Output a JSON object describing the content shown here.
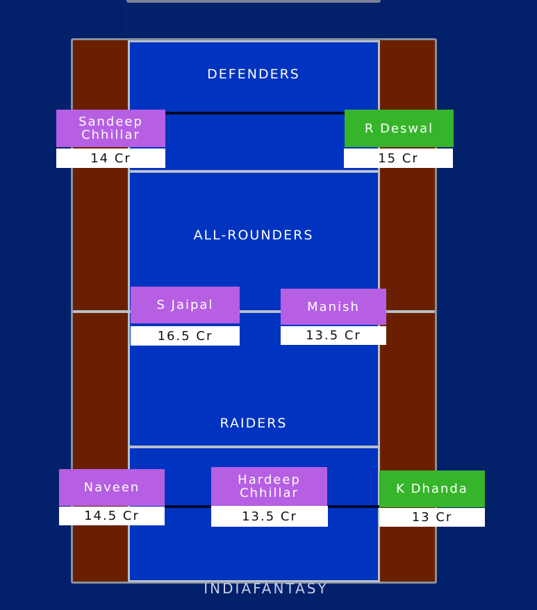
{
  "zones": {
    "defenders": "DEFENDERS",
    "all_rounders": "ALL-ROUNDERS",
    "raiders": "RAIDERS"
  },
  "brand": "INDIAFANTASY",
  "players": [
    {
      "name": "Sandeep Chhillar",
      "price": "14 Cr",
      "color": "#b65fe3"
    },
    {
      "name": "R Deswal",
      "price": "15 Cr",
      "color": "#36b52a"
    },
    {
      "name": "S Jaipal",
      "price": "16.5 Cr",
      "color": "#b65fe3"
    },
    {
      "name": "Manish",
      "price": "13.5 Cr",
      "color": "#b65fe3"
    },
    {
      "name": "Naveen",
      "price": "14.5 Cr",
      "color": "#b65fe3"
    },
    {
      "name": "Hardeep Chhillar",
      "price": "13.5 Cr",
      "color": "#b65fe3"
    },
    {
      "name": "K Dhanda",
      "price": "13 Cr",
      "color": "#36b52a"
    }
  ]
}
